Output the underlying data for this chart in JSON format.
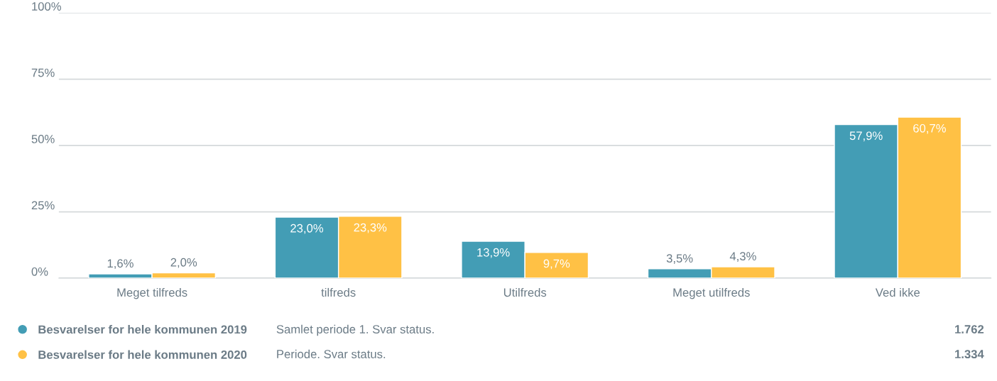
{
  "chart_data": {
    "type": "bar",
    "categories": [
      "Meget tilfreds",
      "tilfreds",
      "Utilfreds",
      "Meget utilfreds",
      "Ved ikke"
    ],
    "series": [
      {
        "name": "Besvarelser for hele kommunen 2019",
        "color": "#439db5",
        "values": [
          1.6,
          23.0,
          13.9,
          3.5,
          57.9
        ],
        "value_labels": [
          "1,6%",
          "23,0%",
          "13,9%",
          "3,5%",
          "57,9%"
        ]
      },
      {
        "name": "Besvarelser for hele kommunen 2020",
        "color": "#ffc145",
        "values": [
          2.0,
          23.3,
          9.7,
          4.3,
          60.7
        ],
        "value_labels": [
          "2,0%",
          "23,3%",
          "9,7%",
          "4,3%",
          "60,7%"
        ]
      }
    ],
    "ylim": [
      0,
      100
    ],
    "yticks": [
      {
        "value": 0,
        "label": "0%"
      },
      {
        "value": 25,
        "label": "25%"
      },
      {
        "value": 50,
        "label": "50%"
      },
      {
        "value": 75,
        "label": "75%"
      },
      {
        "value": 100,
        "label": "100%"
      }
    ],
    "grid": "y",
    "legend": "bottom",
    "annotations": [
      "Samlet periode 1. Svar status.",
      "1.762",
      "Periode. Svar status.",
      "1.334"
    ]
  }
}
